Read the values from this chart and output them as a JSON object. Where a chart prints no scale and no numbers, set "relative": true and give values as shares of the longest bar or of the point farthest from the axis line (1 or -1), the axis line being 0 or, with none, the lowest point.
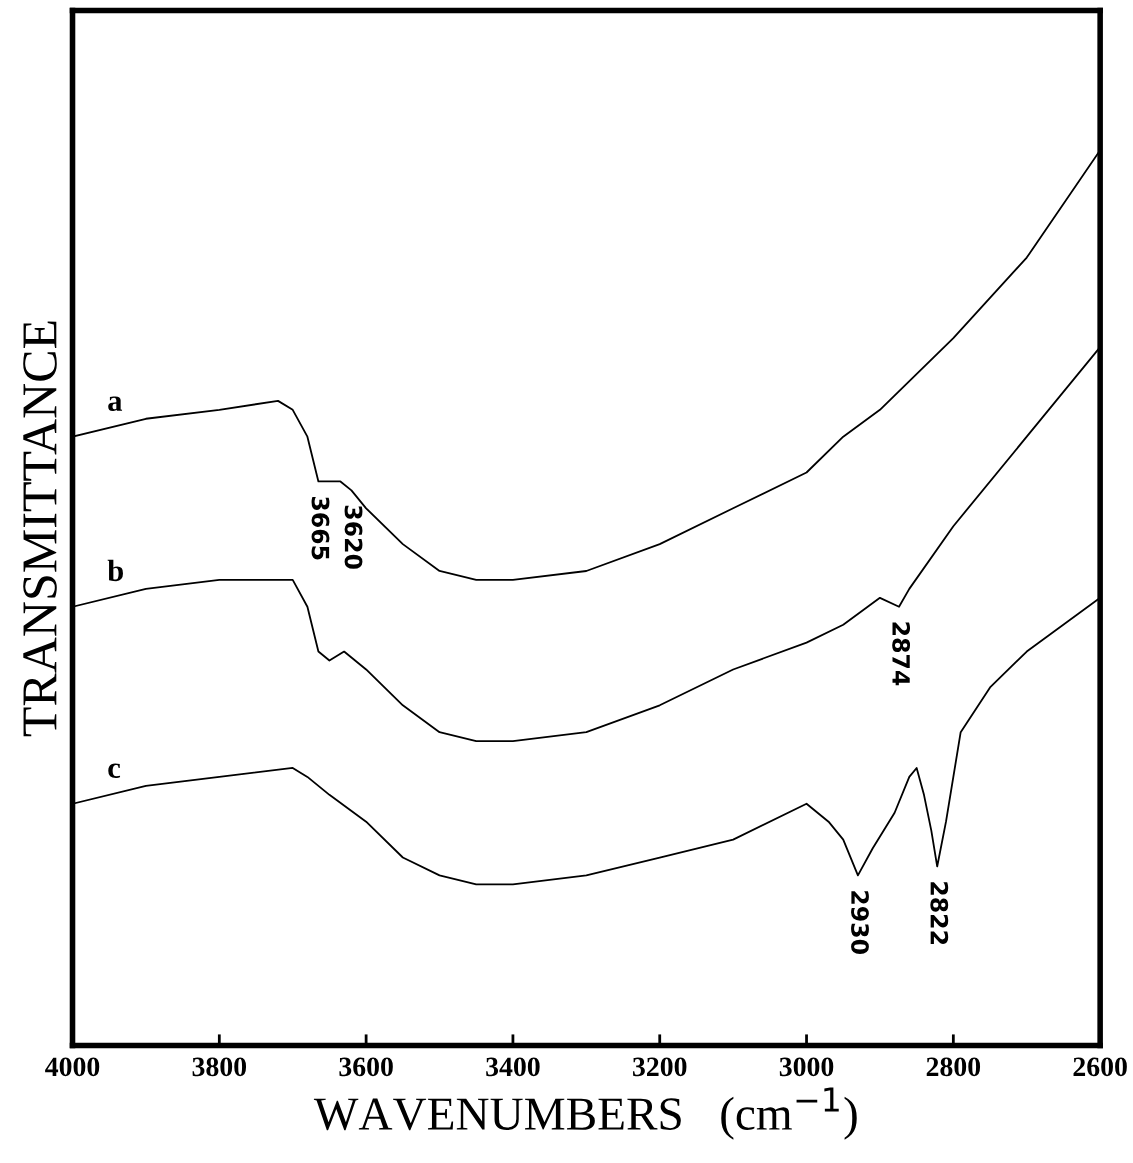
{
  "chart_data": {
    "type": "line",
    "relative": true,
    "xlabel": "WAVENUMBERS   (cm$^{−1}$)",
    "ylabel": "TRANSMITTANCE",
    "xlim": [
      4000,
      2600
    ],
    "xticks": [
      4000,
      3800,
      3600,
      3400,
      3200,
      3000,
      2800,
      2600
    ],
    "tick_labels": "x",
    "grid": false,
    "legend": false,
    "marker": "none",
    "line_style": "solid",
    "series": [
      {
        "name": "a",
        "color": "#000000",
        "x": [
          4000,
          3900,
          3800,
          3720,
          3700,
          3680,
          3665,
          3650,
          3635,
          3620,
          3600,
          3550,
          3500,
          3450,
          3400,
          3300,
          3200,
          3100,
          3000,
          2950,
          2900,
          2800,
          2700,
          2600
        ],
        "values": [
          0.68,
          0.7,
          0.71,
          0.72,
          0.71,
          0.68,
          0.63,
          0.63,
          0.63,
          0.62,
          0.6,
          0.56,
          0.53,
          0.52,
          0.52,
          0.53,
          0.56,
          0.6,
          0.64,
          0.68,
          0.71,
          0.79,
          0.88,
          1.0
        ]
      },
      {
        "name": "b",
        "color": "#000000",
        "x": [
          4000,
          3900,
          3800,
          3720,
          3700,
          3680,
          3665,
          3650,
          3630,
          3600,
          3550,
          3500,
          3450,
          3400,
          3300,
          3200,
          3100,
          3000,
          2950,
          2900,
          2874,
          2860,
          2800,
          2700,
          2600
        ],
        "values": [
          0.49,
          0.51,
          0.52,
          0.52,
          0.52,
          0.49,
          0.44,
          0.43,
          0.44,
          0.42,
          0.38,
          0.35,
          0.34,
          0.34,
          0.35,
          0.38,
          0.42,
          0.45,
          0.47,
          0.5,
          0.49,
          0.51,
          0.58,
          0.68,
          0.78
        ]
      },
      {
        "name": "c",
        "color": "#000000",
        "x": [
          4000,
          3900,
          3800,
          3700,
          3680,
          3650,
          3600,
          3550,
          3500,
          3450,
          3400,
          3300,
          3200,
          3100,
          3000,
          2970,
          2950,
          2930,
          2910,
          2880,
          2860,
          2850,
          2840,
          2830,
          2822,
          2810,
          2790,
          2750,
          2700,
          2600
        ],
        "values": [
          0.27,
          0.29,
          0.3,
          0.31,
          0.3,
          0.28,
          0.25,
          0.21,
          0.19,
          0.18,
          0.18,
          0.19,
          0.21,
          0.23,
          0.27,
          0.25,
          0.23,
          0.19,
          0.22,
          0.26,
          0.3,
          0.31,
          0.28,
          0.24,
          0.2,
          0.25,
          0.35,
          0.4,
          0.44,
          0.5
        ]
      }
    ],
    "annotations": [
      {
        "text": "3665",
        "x": 3665,
        "y": 0.63
      },
      {
        "text": "3620",
        "x": 3620,
        "y": 0.62
      },
      {
        "text": "2874",
        "x": 2874,
        "y": 0.49
      },
      {
        "text": "2930",
        "x": 2930,
        "y": 0.19
      },
      {
        "text": "2822",
        "x": 2822,
        "y": 0.2
      }
    ]
  }
}
